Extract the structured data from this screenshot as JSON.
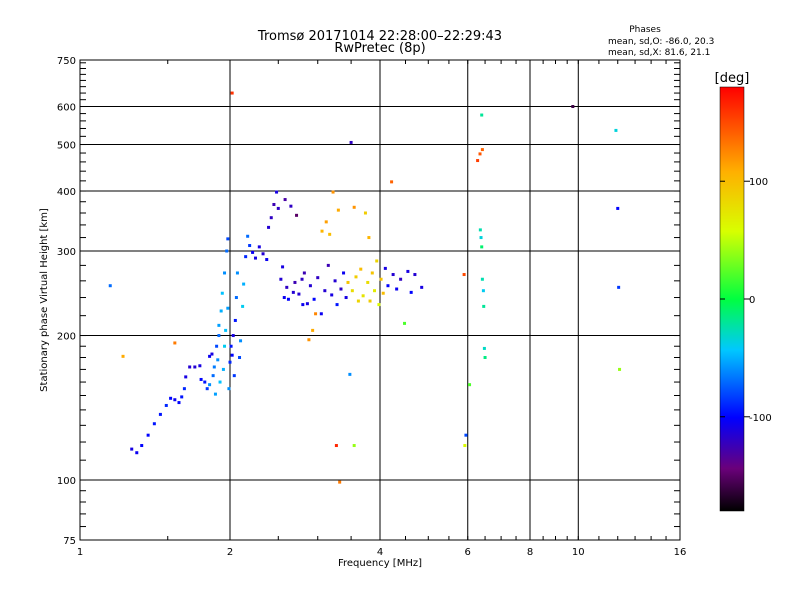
{
  "chart_data": {
    "type": "scatter",
    "title": "Tromsø 20171014 22:28:00–22:29:43",
    "subtitle": "RwPretec (8p)",
    "xlabel": "Frequency [MHz]",
    "ylabel": "Stationary phase Virtual Height [km]",
    "x_scale": "log",
    "y_scale": "log",
    "xlim": [
      1,
      16
    ],
    "ylim": [
      75,
      750
    ],
    "x_ticks": [
      1,
      2,
      4,
      6,
      8,
      10,
      16
    ],
    "y_ticks": [
      75,
      100,
      200,
      300,
      400,
      500,
      600,
      750
    ],
    "grid": true,
    "stats": {
      "heading": "Phases",
      "line1": "mean, sd,O: -86.0, 20.3",
      "line2": "mean, sd,X:  81.6, 21.1"
    },
    "colorbar": {
      "label": "[deg]",
      "ticks": [
        100,
        0,
        -100
      ],
      "range": [
        -180,
        180
      ],
      "colormap": "rainbow"
    },
    "series": [
      {
        "points": [
          {
            "x": 1.27,
            "y": 116,
            "c": -110
          },
          {
            "x": 1.3,
            "y": 114,
            "c": -105
          },
          {
            "x": 1.33,
            "y": 118,
            "c": -100
          },
          {
            "x": 1.37,
            "y": 124,
            "c": -100
          },
          {
            "x": 1.41,
            "y": 131,
            "c": -95
          },
          {
            "x": 1.45,
            "y": 137,
            "c": -95
          },
          {
            "x": 1.49,
            "y": 143,
            "c": -90
          },
          {
            "x": 1.52,
            "y": 148,
            "c": -100
          },
          {
            "x": 1.55,
            "y": 147,
            "c": -105
          },
          {
            "x": 1.58,
            "y": 145,
            "c": -100
          },
          {
            "x": 1.6,
            "y": 149,
            "c": -95
          },
          {
            "x": 1.62,
            "y": 155,
            "c": -90
          },
          {
            "x": 1.63,
            "y": 164,
            "c": -110
          },
          {
            "x": 1.66,
            "y": 172,
            "c": -115
          },
          {
            "x": 1.7,
            "y": 172,
            "c": -115
          },
          {
            "x": 1.74,
            "y": 173,
            "c": -110
          },
          {
            "x": 1.75,
            "y": 162,
            "c": -100
          },
          {
            "x": 1.78,
            "y": 160,
            "c": -95
          },
          {
            "x": 1.8,
            "y": 155,
            "c": -85
          },
          {
            "x": 1.82,
            "y": 158,
            "c": -60
          },
          {
            "x": 1.82,
            "y": 181,
            "c": -105
          },
          {
            "x": 1.84,
            "y": 183,
            "c": -110
          },
          {
            "x": 1.85,
            "y": 165,
            "c": -70
          },
          {
            "x": 1.86,
            "y": 172,
            "c": -65
          },
          {
            "x": 1.87,
            "y": 151,
            "c": -55
          },
          {
            "x": 1.88,
            "y": 190,
            "c": -80
          },
          {
            "x": 1.89,
            "y": 178,
            "c": -60
          },
          {
            "x": 1.9,
            "y": 200,
            "c": -70
          },
          {
            "x": 1.9,
            "y": 210,
            "c": -55
          },
          {
            "x": 1.91,
            "y": 160,
            "c": -45
          },
          {
            "x": 1.92,
            "y": 225,
            "c": -50
          },
          {
            "x": 1.93,
            "y": 245,
            "c": -45
          },
          {
            "x": 1.94,
            "y": 170,
            "c": -50
          },
          {
            "x": 1.95,
            "y": 270,
            "c": -60
          },
          {
            "x": 1.95,
            "y": 190,
            "c": -40
          },
          {
            "x": 1.96,
            "y": 205,
            "c": -45
          },
          {
            "x": 1.97,
            "y": 300,
            "c": -70
          },
          {
            "x": 1.98,
            "y": 228,
            "c": -55
          },
          {
            "x": 1.98,
            "y": 318,
            "c": -80
          },
          {
            "x": 1.99,
            "y": 155,
            "c": -60
          },
          {
            "x": 2.0,
            "y": 176,
            "c": -90
          },
          {
            "x": 2.01,
            "y": 190,
            "c": -95
          },
          {
            "x": 2.02,
            "y": 182,
            "c": -100
          },
          {
            "x": 2.03,
            "y": 200,
            "c": -110
          },
          {
            "x": 2.04,
            "y": 165,
            "c": -85
          },
          {
            "x": 2.05,
            "y": 215,
            "c": -95
          },
          {
            "x": 2.06,
            "y": 240,
            "c": -70
          },
          {
            "x": 2.07,
            "y": 270,
            "c": -60
          },
          {
            "x": 2.09,
            "y": 180,
            "c": -80
          },
          {
            "x": 2.1,
            "y": 195,
            "c": -60
          },
          {
            "x": 2.12,
            "y": 230,
            "c": -40
          },
          {
            "x": 2.13,
            "y": 256,
            "c": -50
          },
          {
            "x": 2.15,
            "y": 292,
            "c": -90
          },
          {
            "x": 2.17,
            "y": 322,
            "c": -70
          },
          {
            "x": 2.19,
            "y": 308,
            "c": -85
          },
          {
            "x": 2.22,
            "y": 298,
            "c": -105
          },
          {
            "x": 2.25,
            "y": 290,
            "c": -110
          },
          {
            "x": 2.29,
            "y": 306,
            "c": -110
          },
          {
            "x": 2.33,
            "y": 296,
            "c": -115
          },
          {
            "x": 2.37,
            "y": 288,
            "c": -105
          },
          {
            "x": 2.39,
            "y": 336,
            "c": -115
          },
          {
            "x": 2.42,
            "y": 352,
            "c": -120
          },
          {
            "x": 2.45,
            "y": 375,
            "c": -125
          },
          {
            "x": 2.48,
            "y": 398,
            "c": -110
          },
          {
            "x": 2.5,
            "y": 368,
            "c": -120
          },
          {
            "x": 2.53,
            "y": 262,
            "c": -115
          },
          {
            "x": 2.55,
            "y": 278,
            "c": -110
          },
          {
            "x": 2.57,
            "y": 240,
            "c": -105
          },
          {
            "x": 2.58,
            "y": 384,
            "c": -130
          },
          {
            "x": 2.6,
            "y": 252,
            "c": -120
          },
          {
            "x": 2.62,
            "y": 238,
            "c": -100
          },
          {
            "x": 2.65,
            "y": 372,
            "c": -120
          },
          {
            "x": 2.68,
            "y": 246,
            "c": -115
          },
          {
            "x": 2.7,
            "y": 258,
            "c": -125
          },
          {
            "x": 2.72,
            "y": 356,
            "c": -150
          },
          {
            "x": 2.75,
            "y": 244,
            "c": -115
          },
          {
            "x": 2.79,
            "y": 262,
            "c": -120
          },
          {
            "x": 2.8,
            "y": 232,
            "c": -105
          },
          {
            "x": 2.82,
            "y": 270,
            "c": -125
          },
          {
            "x": 2.86,
            "y": 233,
            "c": -110
          },
          {
            "x": 2.88,
            "y": 196,
            "c": 120
          },
          {
            "x": 2.9,
            "y": 254,
            "c": -115
          },
          {
            "x": 2.93,
            "y": 205,
            "c": 110
          },
          {
            "x": 2.95,
            "y": 238,
            "c": -100
          },
          {
            "x": 2.97,
            "y": 222,
            "c": 125
          },
          {
            "x": 3.0,
            "y": 264,
            "c": -120
          },
          {
            "x": 3.05,
            "y": 222,
            "c": -105
          },
          {
            "x": 3.06,
            "y": 330,
            "c": 105
          },
          {
            "x": 3.1,
            "y": 248,
            "c": -115
          },
          {
            "x": 3.12,
            "y": 345,
            "c": 115
          },
          {
            "x": 3.15,
            "y": 280,
            "c": -125
          },
          {
            "x": 3.17,
            "y": 325,
            "c": 100
          },
          {
            "x": 3.2,
            "y": 243,
            "c": -110
          },
          {
            "x": 3.22,
            "y": 398,
            "c": 120
          },
          {
            "x": 3.25,
            "y": 260,
            "c": -115
          },
          {
            "x": 3.28,
            "y": 232,
            "c": -95
          },
          {
            "x": 3.3,
            "y": 365,
            "c": 110
          },
          {
            "x": 3.34,
            "y": 250,
            "c": -120
          },
          {
            "x": 3.38,
            "y": 270,
            "c": -105
          },
          {
            "x": 3.42,
            "y": 240,
            "c": -110
          },
          {
            "x": 3.45,
            "y": 258,
            "c": 95
          },
          {
            "x": 3.48,
            "y": 166,
            "c": -60
          },
          {
            "x": 3.5,
            "y": 505,
            "c": -120
          },
          {
            "x": 3.52,
            "y": 248,
            "c": 80
          },
          {
            "x": 3.55,
            "y": 370,
            "c": 120
          },
          {
            "x": 3.58,
            "y": 265,
            "c": 90
          },
          {
            "x": 3.62,
            "y": 236,
            "c": 85
          },
          {
            "x": 3.66,
            "y": 275,
            "c": 100
          },
          {
            "x": 3.7,
            "y": 242,
            "c": 75
          },
          {
            "x": 3.74,
            "y": 360,
            "c": 90
          },
          {
            "x": 3.78,
            "y": 258,
            "c": 80
          },
          {
            "x": 3.8,
            "y": 320,
            "c": 105
          },
          {
            "x": 3.82,
            "y": 236,
            "c": 90
          },
          {
            "x": 3.86,
            "y": 270,
            "c": 95
          },
          {
            "x": 3.9,
            "y": 248,
            "c": 70
          },
          {
            "x": 3.94,
            "y": 286,
            "c": 85
          },
          {
            "x": 3.98,
            "y": 232,
            "c": 60
          },
          {
            "x": 4.02,
            "y": 262,
            "c": 95
          },
          {
            "x": 4.06,
            "y": 245,
            "c": 100
          },
          {
            "x": 4.1,
            "y": 276,
            "c": -110
          },
          {
            "x": 4.15,
            "y": 254,
            "c": -100
          },
          {
            "x": 4.22,
            "y": 418,
            "c": 140
          },
          {
            "x": 4.25,
            "y": 268,
            "c": -115
          },
          {
            "x": 4.32,
            "y": 250,
            "c": -105
          },
          {
            "x": 4.4,
            "y": 262,
            "c": -120
          },
          {
            "x": 4.48,
            "y": 212,
            "c": 20
          },
          {
            "x": 4.55,
            "y": 272,
            "c": -110
          },
          {
            "x": 4.62,
            "y": 246,
            "c": -100
          },
          {
            "x": 4.7,
            "y": 268,
            "c": -115
          },
          {
            "x": 4.85,
            "y": 252,
            "c": -110
          },
          {
            "x": 1.15,
            "y": 254,
            "c": -70
          },
          {
            "x": 1.22,
            "y": 181,
            "c": 110
          },
          {
            "x": 1.55,
            "y": 193,
            "c": 130
          },
          {
            "x": 2.02,
            "y": 640,
            "c": 160
          },
          {
            "x": 3.27,
            "y": 118,
            "c": 165
          },
          {
            "x": 3.32,
            "y": 99,
            "c": 130
          },
          {
            "x": 3.55,
            "y": 118,
            "c": 40
          },
          {
            "x": 5.9,
            "y": 268,
            "c": 150
          },
          {
            "x": 5.92,
            "y": 118,
            "c": 60
          },
          {
            "x": 5.95,
            "y": 124,
            "c": -80
          },
          {
            "x": 6.05,
            "y": 158,
            "c": 20
          },
          {
            "x": 6.28,
            "y": 463,
            "c": 155
          },
          {
            "x": 6.35,
            "y": 478,
            "c": 145
          },
          {
            "x": 6.42,
            "y": 488,
            "c": 140
          },
          {
            "x": 6.36,
            "y": 332,
            "c": -25
          },
          {
            "x": 6.38,
            "y": 320,
            "c": -35
          },
          {
            "x": 6.4,
            "y": 306,
            "c": -10
          },
          {
            "x": 6.42,
            "y": 262,
            "c": -25
          },
          {
            "x": 6.45,
            "y": 248,
            "c": -40
          },
          {
            "x": 6.46,
            "y": 230,
            "c": -20
          },
          {
            "x": 6.48,
            "y": 188,
            "c": -30
          },
          {
            "x": 6.5,
            "y": 180,
            "c": -15
          },
          {
            "x": 6.4,
            "y": 576,
            "c": -20
          },
          {
            "x": 9.75,
            "y": 600,
            "c": -160
          },
          {
            "x": 11.9,
            "y": 535,
            "c": -35
          },
          {
            "x": 12.0,
            "y": 368,
            "c": -100
          },
          {
            "x": 12.05,
            "y": 252,
            "c": -85
          },
          {
            "x": 12.1,
            "y": 170,
            "c": 40
          }
        ]
      }
    ]
  }
}
